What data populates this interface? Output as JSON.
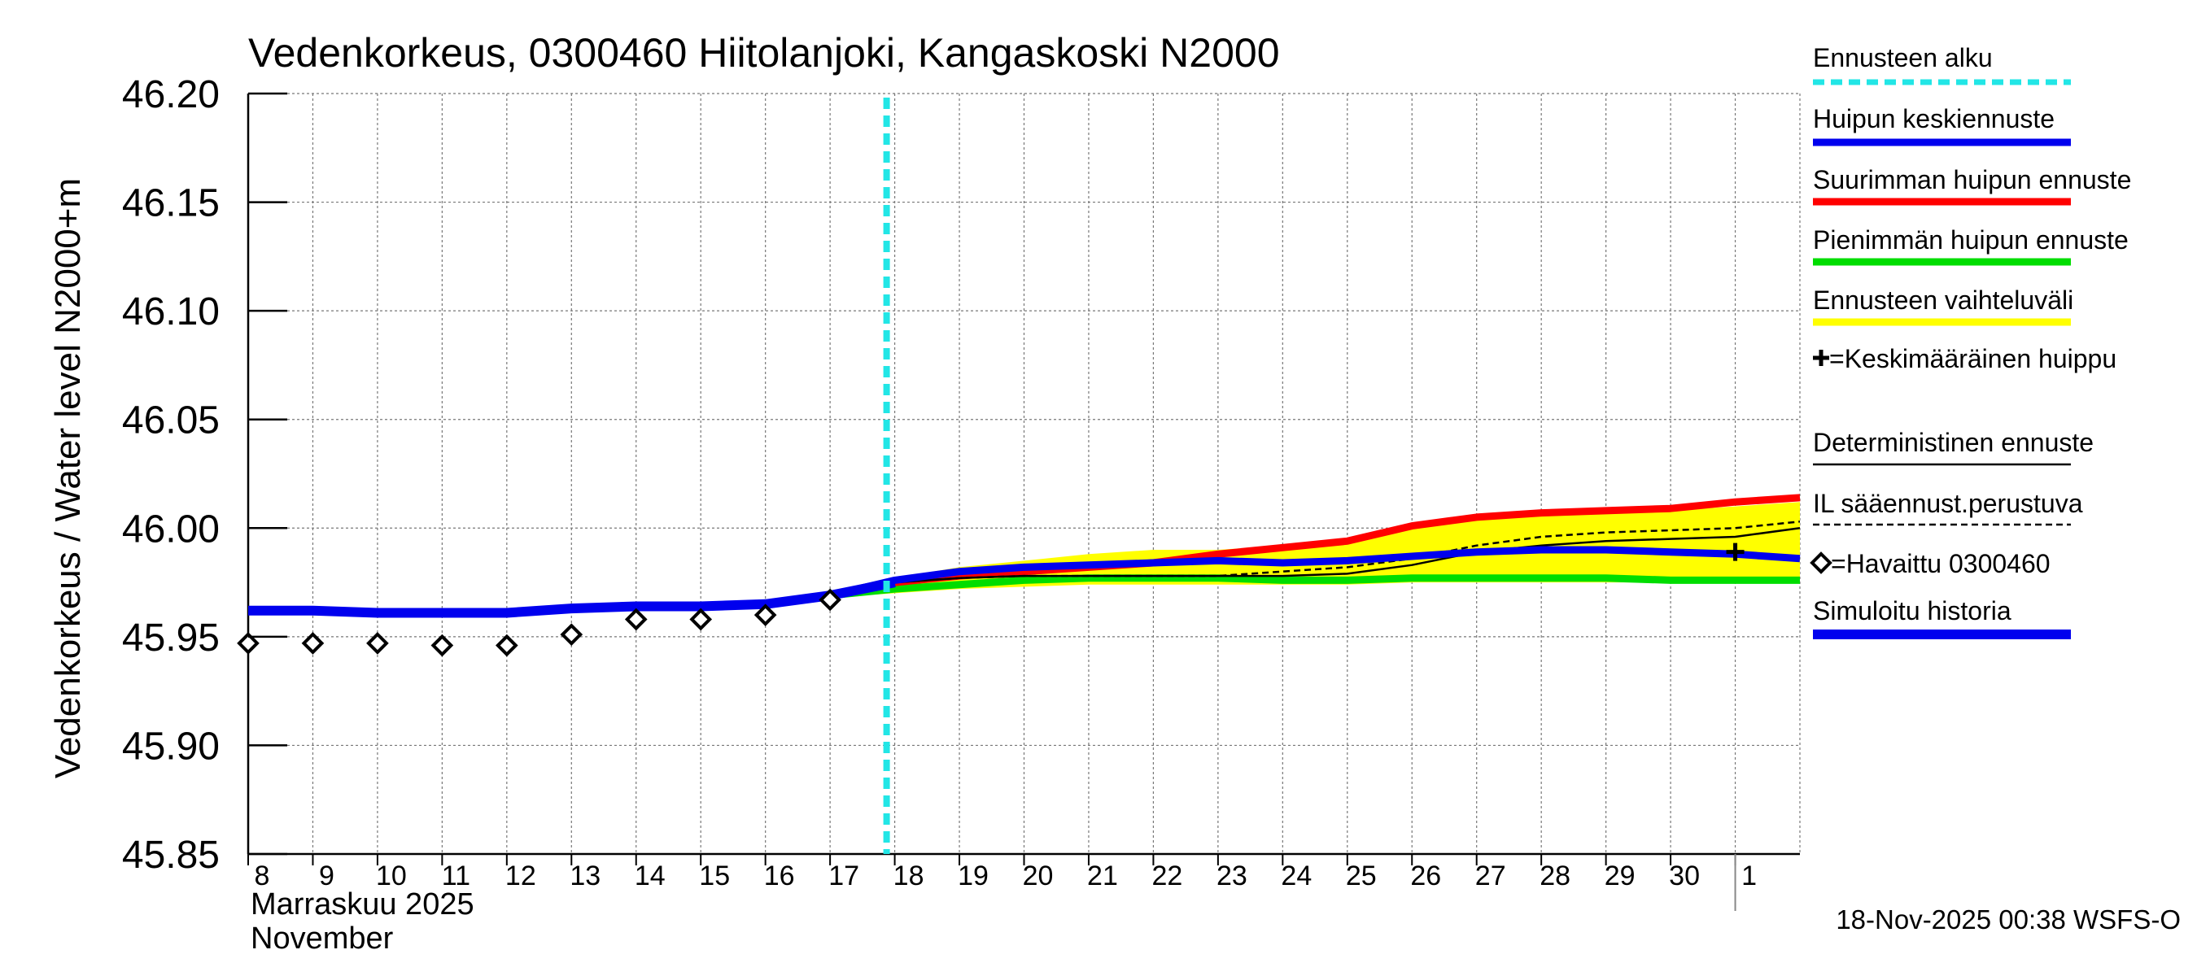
{
  "chart_data": {
    "type": "line",
    "title": "Vedenkorkeus, 0300460 Hiitolanjoki, Kangaskoski N2000",
    "ylabel": "Vedenkorkeus / Water level    N2000+m",
    "ylim": [
      45.85,
      46.2
    ],
    "y_ticks": [
      "46.20",
      "46.15",
      "46.10",
      "46.05",
      "46.00",
      "45.95",
      "45.90",
      "45.85"
    ],
    "x_range": [
      0,
      24
    ],
    "x_tick_labels": [
      "8",
      "9",
      "10",
      "11",
      "12",
      "13",
      "14",
      "15",
      "16",
      "17",
      "18",
      "19",
      "20",
      "21",
      "22",
      "23",
      "24",
      "25",
      "26",
      "27",
      "28",
      "29",
      "30",
      "1"
    ],
    "x_month_label_fi": "Marraskuu 2025",
    "x_month_label_en": "November",
    "month_boundary_x": 23,
    "forecast_start_x": 10,
    "footer": "18-Nov-2025 00:38 WSFS-O",
    "colors": {
      "forecast_start": "#22e6e6",
      "mean_peak": "#0000ee",
      "max_peak": "#ff0000",
      "min_peak": "#00dd00",
      "range": "#ffff00",
      "deterministic": "#000000",
      "il_forecast": "#000000",
      "simulated": "#0000ee",
      "observed": "#000000"
    },
    "legend": [
      {
        "key": "forecast_start",
        "label": "Ennusteen alku",
        "style": "dashed-cyan"
      },
      {
        "key": "mean_peak",
        "label": "Huipun keskiennuste",
        "style": "line-blue"
      },
      {
        "key": "max_peak",
        "label": "Suurimman huipun ennuste",
        "style": "line-red"
      },
      {
        "key": "min_peak",
        "label": "Pienimmän huipun ennuste",
        "style": "line-green"
      },
      {
        "key": "range",
        "label": "Ennusteen vaihteluväli",
        "style": "line-yellow"
      },
      {
        "key": "mean_peak_marker",
        "label": "=Keskimääräinen huippu",
        "style": "plus"
      },
      {
        "key": "deterministic",
        "label": "Deterministinen ennuste",
        "style": "thin-black"
      },
      {
        "key": "il_forecast",
        "label": "IL sääennust.perustuva",
        "style": "dashed-black"
      },
      {
        "key": "observed",
        "label": "=Havaittu 0300460",
        "style": "diamond"
      },
      {
        "key": "simulated",
        "label": "Simuloitu historia",
        "style": "line-blue-thick"
      }
    ],
    "series": {
      "simulated_history": {
        "x": [
          0,
          1,
          2,
          3,
          4,
          5,
          6,
          7,
          8,
          9,
          10
        ],
        "y": [
          45.962,
          45.962,
          45.961,
          45.961,
          45.961,
          45.963,
          45.964,
          45.964,
          45.965,
          45.969,
          45.975
        ]
      },
      "observed": {
        "x": [
          0,
          1,
          2,
          3,
          4,
          5,
          6,
          7,
          8,
          9
        ],
        "y": [
          45.947,
          45.947,
          45.947,
          45.946,
          45.946,
          45.951,
          45.958,
          45.958,
          45.96,
          45.967
        ]
      },
      "range_upper": {
        "x": [
          9,
          10,
          11,
          12,
          13,
          14,
          15,
          16,
          17,
          18,
          19,
          20,
          21,
          22,
          23,
          24
        ],
        "y": [
          45.969,
          45.977,
          45.982,
          45.985,
          45.988,
          45.99,
          45.99,
          45.992,
          45.995,
          46.0,
          46.004,
          46.006,
          46.007,
          46.008,
          46.01,
          46.012
        ]
      },
      "range_lower": {
        "x": [
          9,
          10,
          11,
          12,
          13,
          14,
          15,
          16,
          17,
          18,
          19,
          20,
          21,
          22,
          23,
          24
        ],
        "y": [
          45.968,
          45.97,
          45.972,
          45.973,
          45.974,
          45.974,
          45.974,
          45.974,
          45.974,
          45.975,
          45.975,
          45.975,
          45.975,
          45.975,
          45.975,
          45.975
        ]
      },
      "max_peak": {
        "x": [
          9,
          10,
          11,
          12,
          13,
          14,
          15,
          16,
          17,
          18,
          19,
          20,
          21,
          22,
          23,
          24
        ],
        "y": [
          45.969,
          45.975,
          45.978,
          45.98,
          45.982,
          45.984,
          45.988,
          45.991,
          45.994,
          46.001,
          46.005,
          46.007,
          46.008,
          46.009,
          46.012,
          46.014
        ]
      },
      "min_peak": {
        "x": [
          9,
          10,
          11,
          12,
          13,
          14,
          15,
          16,
          17,
          18,
          19,
          20,
          21,
          22,
          23,
          24
        ],
        "y": [
          45.969,
          45.972,
          45.974,
          45.976,
          45.977,
          45.977,
          45.977,
          45.976,
          45.976,
          45.977,
          45.977,
          45.977,
          45.977,
          45.976,
          45.976,
          45.976
        ]
      },
      "mean_peak": {
        "x": [
          9,
          10,
          11,
          12,
          13,
          14,
          15,
          16,
          17,
          18,
          19,
          20,
          21,
          22,
          23,
          24
        ],
        "y": [
          45.969,
          45.976,
          45.98,
          45.982,
          45.983,
          45.984,
          45.985,
          45.984,
          45.985,
          45.987,
          45.989,
          45.99,
          45.99,
          45.989,
          45.988,
          45.986
        ]
      },
      "deterministic": {
        "x": [
          9,
          10,
          11,
          12,
          13,
          14,
          15,
          16,
          17,
          18,
          19,
          20,
          21,
          22,
          23,
          24
        ],
        "y": [
          45.969,
          45.975,
          45.977,
          45.978,
          45.978,
          45.978,
          45.978,
          45.978,
          45.979,
          45.983,
          45.989,
          45.992,
          45.994,
          45.995,
          45.996,
          46.0
        ]
      },
      "il_forecast": {
        "x": [
          9,
          10,
          11,
          12,
          13,
          14,
          15,
          16,
          17,
          18,
          19,
          20,
          21,
          22,
          23,
          24
        ],
        "y": [
          45.969,
          45.975,
          45.977,
          45.978,
          45.978,
          45.978,
          45.978,
          45.98,
          45.982,
          45.986,
          45.992,
          45.996,
          45.998,
          45.999,
          46.0,
          46.003
        ]
      },
      "mean_peak_marker": {
        "x": 23,
        "y": 45.989
      }
    }
  }
}
